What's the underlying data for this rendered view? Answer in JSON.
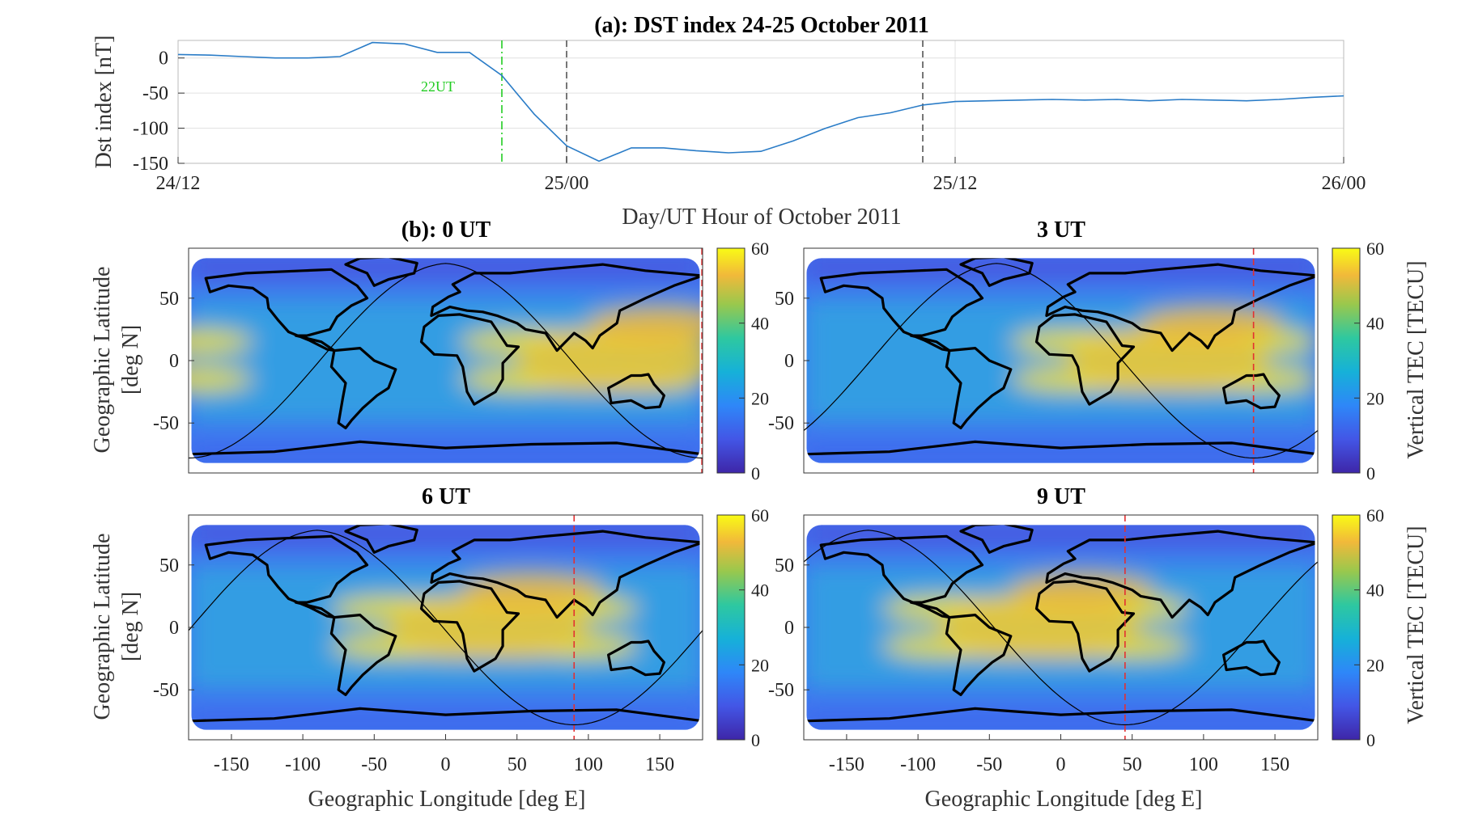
{
  "chart_data": [
    {
      "type": "line",
      "title": "(a): DST index 24-25 October 2011",
      "xlabel": "Day/UT Hour of October 2011",
      "ylabel": "Dst index [nT]",
      "x_ticks": [
        "24/12",
        "25/00",
        "25/12",
        "26/00"
      ],
      "xlim_hours": [
        0,
        36
      ],
      "ylim": [
        -150,
        25
      ],
      "y_ticks": [
        0,
        -50,
        -100,
        -150
      ],
      "grid": true,
      "series": [
        {
          "color": "#2a7cc7",
          "points": [
            [
              0,
              5
            ],
            [
              1,
              4
            ],
            [
              2,
              2
            ],
            [
              3,
              0
            ],
            [
              4,
              0
            ],
            [
              5,
              2
            ],
            [
              6,
              22
            ],
            [
              7,
              20
            ],
            [
              8,
              8
            ],
            [
              9,
              8
            ],
            [
              10,
              -25
            ],
            [
              11,
              -80
            ],
            [
              12,
              -125
            ],
            [
              13,
              -147
            ],
            [
              14,
              -128
            ],
            [
              15,
              -128
            ],
            [
              16,
              -132
            ],
            [
              17,
              -135
            ],
            [
              18,
              -133
            ],
            [
              19,
              -118
            ],
            [
              20,
              -100
            ],
            [
              21,
              -85
            ],
            [
              22,
              -78
            ],
            [
              23,
              -67
            ],
            [
              24,
              -62
            ],
            [
              25,
              -61
            ],
            [
              26,
              -60
            ],
            [
              27,
              -59
            ],
            [
              28,
              -60
            ],
            [
              29,
              -59
            ],
            [
              30,
              -61
            ],
            [
              31,
              -59
            ],
            [
              32,
              -60
            ],
            [
              33,
              -61
            ],
            [
              34,
              -59
            ],
            [
              35,
              -56
            ],
            [
              36,
              -54
            ]
          ]
        }
      ],
      "markers": [
        {
          "x_hours": 10,
          "color": "#22cc22",
          "style": "dash-dot",
          "label": "22UT"
        },
        {
          "x_hours": 12,
          "color": "#555555",
          "style": "dashed"
        },
        {
          "x_hours": 23,
          "color": "#555555",
          "style": "dashed"
        }
      ]
    },
    {
      "type": "heatmap",
      "title": "(b): 0 UT",
      "ylabel": "Geographic Latitude [deg N]",
      "xlabel": "",
      "subsolar_longitude": 180,
      "colorbar_label": ""
    },
    {
      "type": "heatmap",
      "title": "3 UT",
      "ylabel": "",
      "xlabel": "",
      "subsolar_longitude": 135,
      "colorbar_label": "Vertical TEC [TECU]"
    },
    {
      "type": "heatmap",
      "title": "6 UT",
      "ylabel": "Geographic Latitude [deg N]",
      "xlabel": "Geographic Longitude [deg E]",
      "subsolar_longitude": 90,
      "colorbar_label": ""
    },
    {
      "type": "heatmap",
      "title": "9 UT",
      "ylabel": "",
      "xlabel": "Geographic Longitude [deg E]",
      "subsolar_longitude": 45,
      "colorbar_label": "Vertical TEC [TECU]"
    }
  ],
  "map_common": {
    "x_ticks": [
      -150,
      -100,
      -50,
      0,
      50,
      100,
      150
    ],
    "xlim": [
      -180,
      180
    ],
    "y_ticks": [
      50,
      0,
      -50
    ],
    "ylim": [
      -90,
      90
    ],
    "colorbar_ticks": [
      60,
      40,
      20,
      0
    ],
    "clim": [
      0,
      60
    ],
    "colormap": "parula",
    "terminator_color": "#000000",
    "subsolar_color": "#e33030"
  },
  "labels": {
    "dst_title": "(a): DST index 24-25 October 2011",
    "dst_xlabel": "Day/UT Hour of October 2011",
    "dst_ylabel": "Dst index [nT]",
    "marker_22": "22UT",
    "map_ylabel_1": "Geographic Latitude",
    "map_ylabel_2": "[deg N]",
    "map_xlabel": "Geographic Longitude [deg E]",
    "cb_label": "Vertical TEC [TECU]"
  }
}
